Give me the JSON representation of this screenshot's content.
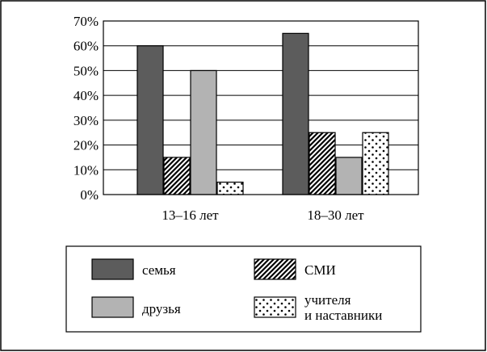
{
  "colors": {
    "frame": "#000000",
    "series_0": "#5c5c5c",
    "series_1_pattern": "diagonal-hatch",
    "series_2": "#b3b3b3",
    "series_3_pattern": "dotted"
  },
  "chart_data": {
    "type": "bar",
    "title": "",
    "xlabel": "",
    "ylabel": "",
    "categories": [
      "13–16 лет",
      "18–30 лет"
    ],
    "series": [
      {
        "name": "семья",
        "values": [
          60,
          65
        ]
      },
      {
        "name": "СМИ",
        "values": [
          15,
          25
        ]
      },
      {
        "name": "друзья",
        "values": [
          50,
          15
        ]
      },
      {
        "name": "учителя и наставники",
        "values": [
          5,
          25
        ]
      }
    ],
    "ylim": [
      0,
      70
    ],
    "yticks": [
      0,
      10,
      20,
      30,
      40,
      50,
      60,
      70
    ],
    "ytick_labels": [
      "0%",
      "10%",
      "20%",
      "30%",
      "40%",
      "50%",
      "60%",
      "70%"
    ],
    "grid": true,
    "legend_position": "bottom",
    "legend": [
      {
        "series_index": 0,
        "lines": [
          "семья"
        ]
      },
      {
        "series_index": 1,
        "lines": [
          "СМИ"
        ]
      },
      {
        "series_index": 2,
        "lines": [
          "друзья"
        ]
      },
      {
        "series_index": 3,
        "lines": [
          "учителя",
          "и наставники"
        ]
      }
    ]
  }
}
